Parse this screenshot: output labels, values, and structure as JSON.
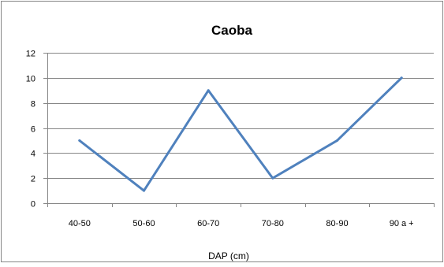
{
  "chart_data": {
    "type": "line",
    "title": "Caoba",
    "xlabel": "DAP (cm)",
    "ylabel": "",
    "categories": [
      "40-50",
      "50-60",
      "60-70",
      "70-80",
      "80-90",
      "90 a +"
    ],
    "series": [
      {
        "values": [
          5,
          1,
          9,
          2,
          5,
          10
        ]
      }
    ],
    "ylim": [
      0,
      12
    ],
    "yticks": [
      0,
      2,
      4,
      6,
      8,
      10,
      12
    ],
    "grid": true,
    "legend": "none",
    "colors": {
      "series": "#4F81BD",
      "grid": "#868686",
      "axis": "#868686",
      "border": "#868686",
      "text": "#000000"
    }
  }
}
